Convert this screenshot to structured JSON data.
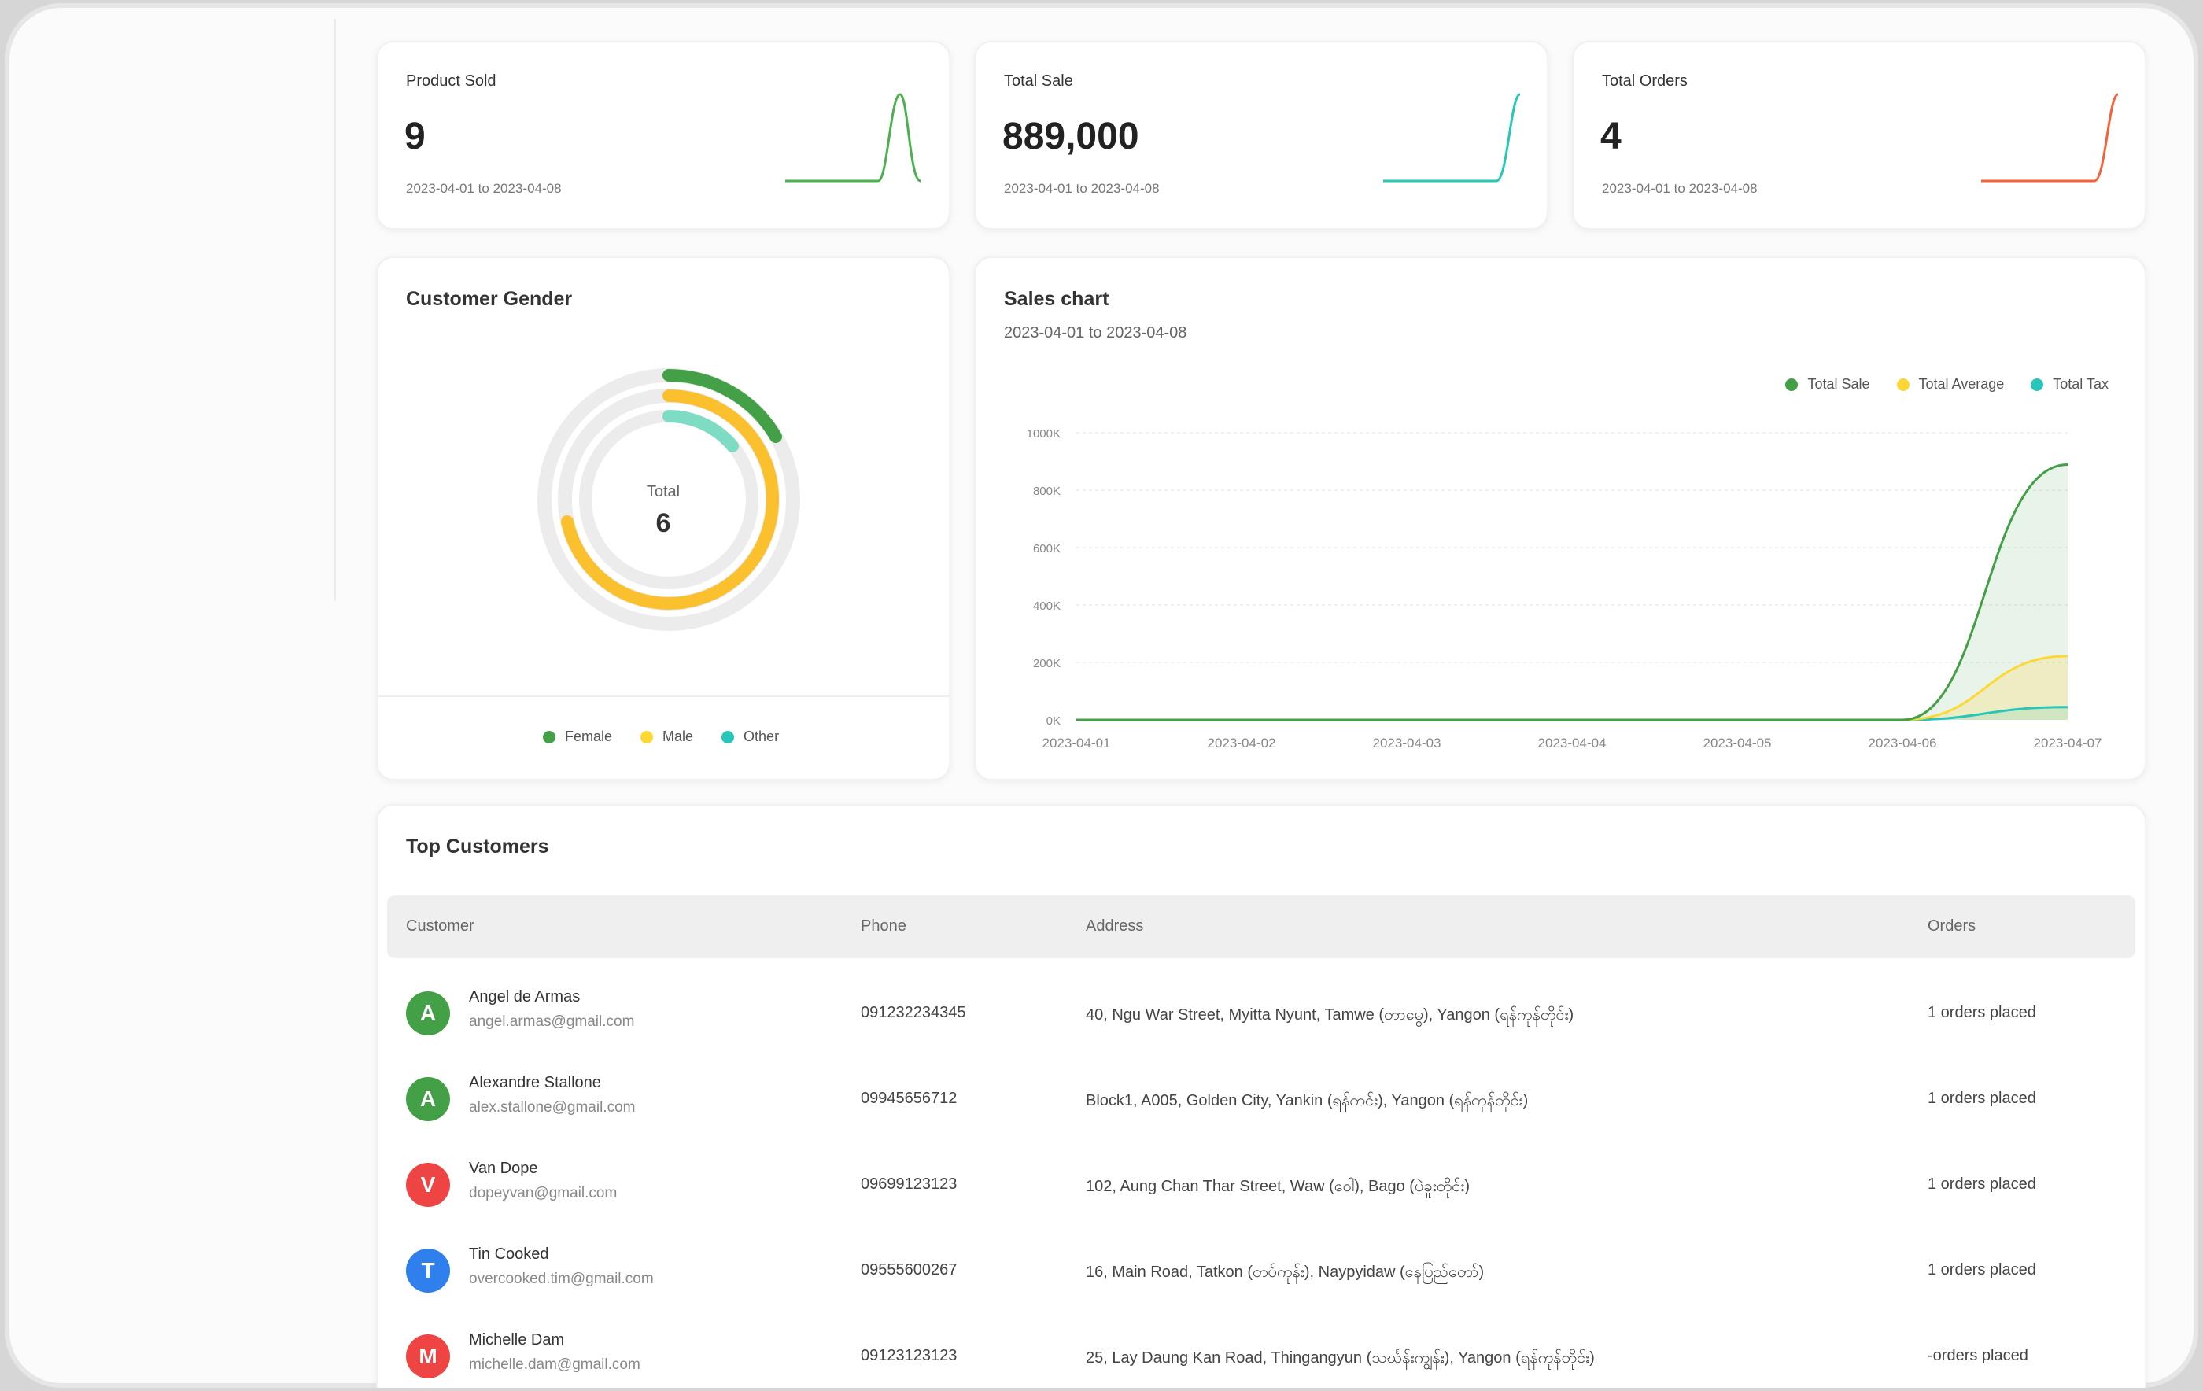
{
  "stats": [
    {
      "label": "Product Sold",
      "value": "9",
      "range": "2023-04-01 to 2023-04-08",
      "color": "#4caf50"
    },
    {
      "label": "Total Sale",
      "value": "889,000",
      "range": "2023-04-01 to 2023-04-08",
      "color": "#26c6b8"
    },
    {
      "label": "Total Orders",
      "value": "4",
      "range": "2023-04-01 to 2023-04-08",
      "color": "#f4623a"
    }
  ],
  "gender": {
    "title": "Customer Gender",
    "center_label": "Total",
    "center_value": "6",
    "legend": [
      {
        "label": "Female",
        "color": "#43a047"
      },
      {
        "label": "Male",
        "color": "#fdd835"
      },
      {
        "label": "Other",
        "color": "#26c6b8"
      }
    ],
    "colors": {
      "female": "#43a047",
      "male": "#fbc02d",
      "other": "#26c6b8",
      "track": "#ececec"
    }
  },
  "chart_data": {
    "type": "area",
    "title": "Sales chart",
    "subtitle": "2023-04-01 to 2023-04-08",
    "categories": [
      "2023-04-01",
      "2023-04-02",
      "2023-04-03",
      "2023-04-04",
      "2023-04-05",
      "2023-04-06",
      "2023-04-07"
    ],
    "y_ticks": [
      "1000K",
      "800K",
      "600K",
      "400K",
      "200K",
      "0K"
    ],
    "ylim": [
      0,
      1000000
    ],
    "legend_position": "top-right",
    "grid": true,
    "series": [
      {
        "name": "Total Sale",
        "color": "#43a047",
        "values": [
          0,
          0,
          0,
          0,
          0,
          0,
          889000
        ]
      },
      {
        "name": "Total Average",
        "color": "#fdd835",
        "values": [
          0,
          0,
          0,
          0,
          0,
          0,
          222250
        ]
      },
      {
        "name": "Total Tax",
        "color": "#26c6b8",
        "values": [
          0,
          0,
          0,
          0,
          0,
          0,
          44450
        ]
      }
    ]
  },
  "customers": {
    "title": "Top Customers",
    "headers": {
      "customer": "Customer",
      "phone": "Phone",
      "address": "Address",
      "orders": "Orders"
    },
    "rows": [
      {
        "initial": "A",
        "color": "#43a047",
        "name": "Angel de Armas",
        "email": "angel.armas@gmail.com",
        "phone": "091232234345",
        "address": "40, Ngu War Street, Myitta Nyunt, Tamwe (တာမွေ), Yangon (ရန်ကုန်တိုင်း)",
        "orders": "1 orders placed"
      },
      {
        "initial": "A",
        "color": "#43a047",
        "name": "Alexandre Stallone",
        "email": "alex.stallone@gmail.com",
        "phone": "09945656712",
        "address": "Block1, A005, Golden City, Yankin (ရန်ကင်း), Yangon (ရန်ကုန်တိုင်း)",
        "orders": "1 orders placed"
      },
      {
        "initial": "V",
        "color": "#ef4444",
        "name": "Van Dope",
        "email": "dopeyvan@gmail.com",
        "phone": "09699123123",
        "address": "102, Aung Chan Thar Street, Waw (ဝေါ), Bago (ပဲခူးတိုင်း)",
        "orders": "1 orders placed"
      },
      {
        "initial": "T",
        "color": "#2f80ed",
        "name": "Tin Cooked",
        "email": "overcooked.tim@gmail.com",
        "phone": "09555600267",
        "address": "16, Main Road, Tatkon (တပ်ကုန်း), Naypyidaw (နေပြည်တော်)",
        "orders": "1 orders placed"
      },
      {
        "initial": "M",
        "color": "#ef4444",
        "name": "Michelle Dam",
        "email": "michelle.dam@gmail.com",
        "phone": "09123123123",
        "address": "25, Lay Daung Kan Road, Thingangyun (သင်္ဃန်းကျွန်း), Yangon (ရန်ကုန်တိုင်း)",
        "orders": "-orders placed"
      }
    ]
  }
}
